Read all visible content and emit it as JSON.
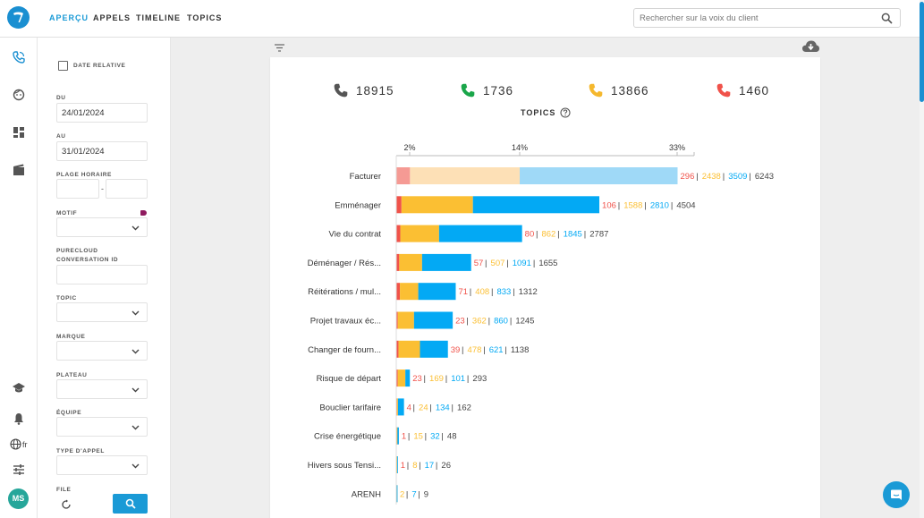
{
  "nav": {
    "tabs": [
      {
        "label": "APERÇU",
        "active": true
      },
      {
        "label": "APPELS",
        "active": false
      },
      {
        "label": "TIMELINE",
        "active": false
      },
      {
        "label": "TOPICS",
        "active": false
      }
    ]
  },
  "search": {
    "placeholder": "Rechercher sur la voix du client"
  },
  "rail": {
    "language": "fr",
    "avatar_initials": "MS"
  },
  "filters": {
    "relative_date_label": "DATE RELATIVE",
    "du_label": "DU",
    "du_value": "24/01/2024",
    "au_label": "AU",
    "au_value": "31/01/2024",
    "plage_label": "PLAGE HORAIRE",
    "plage_separator": "-",
    "motif_label": "MOTIF",
    "purecloud_label_1": "PURECLOUD",
    "purecloud_label_2": "CONVERSATION ID",
    "topic_label": "TOPIC",
    "marque_label": "MARQUE",
    "plateau_label": "PLATEAU",
    "equipe_label": "ÉQUIPE",
    "type_label": "TYPE D'APPEL",
    "file_label": "FILE"
  },
  "kpis": [
    {
      "value": "18915",
      "color": "#555555"
    },
    {
      "value": "1736",
      "color": "#1aa64a"
    },
    {
      "value": "13866",
      "color": "#f5b82e"
    },
    {
      "value": "1460",
      "color": "#f0524a"
    }
  ],
  "topics_title": "TOPICS",
  "colors": {
    "red": "#f0524a",
    "yellow": "#fbbf33",
    "blue": "#03a9f4",
    "grey": "#444444"
  },
  "chart_data": {
    "type": "bar",
    "stacked": true,
    "axis_ticks": [
      "2%",
      "14%",
      "33%"
    ],
    "categories": [
      "Facturer",
      "Emménager",
      "Vie du contrat",
      "Déménager / Rés...",
      "Réitérations / mul...",
      "Projet travaux éc...",
      "Changer de fourn...",
      "Risque de départ",
      "Bouclier tarifaire",
      "Crise énergétique",
      "Hivers sous Tensi...",
      "ARENH"
    ],
    "series": [
      {
        "values": [
          296,
          106,
          80,
          57,
          71,
          23,
          39,
          23,
          4,
          1,
          1,
          0
        ]
      },
      {
        "values": [
          2438,
          1588,
          862,
          507,
          408,
          362,
          478,
          169,
          24,
          15,
          8,
          2
        ]
      },
      {
        "values": [
          3509,
          2810,
          1845,
          1091,
          833,
          860,
          621,
          101,
          134,
          32,
          17,
          7
        ]
      }
    ],
    "totals": [
      6243,
      4504,
      2787,
      1655,
      1312,
      1245,
      1138,
      293,
      162,
      48,
      26,
      9
    ],
    "faded_first": true
  }
}
